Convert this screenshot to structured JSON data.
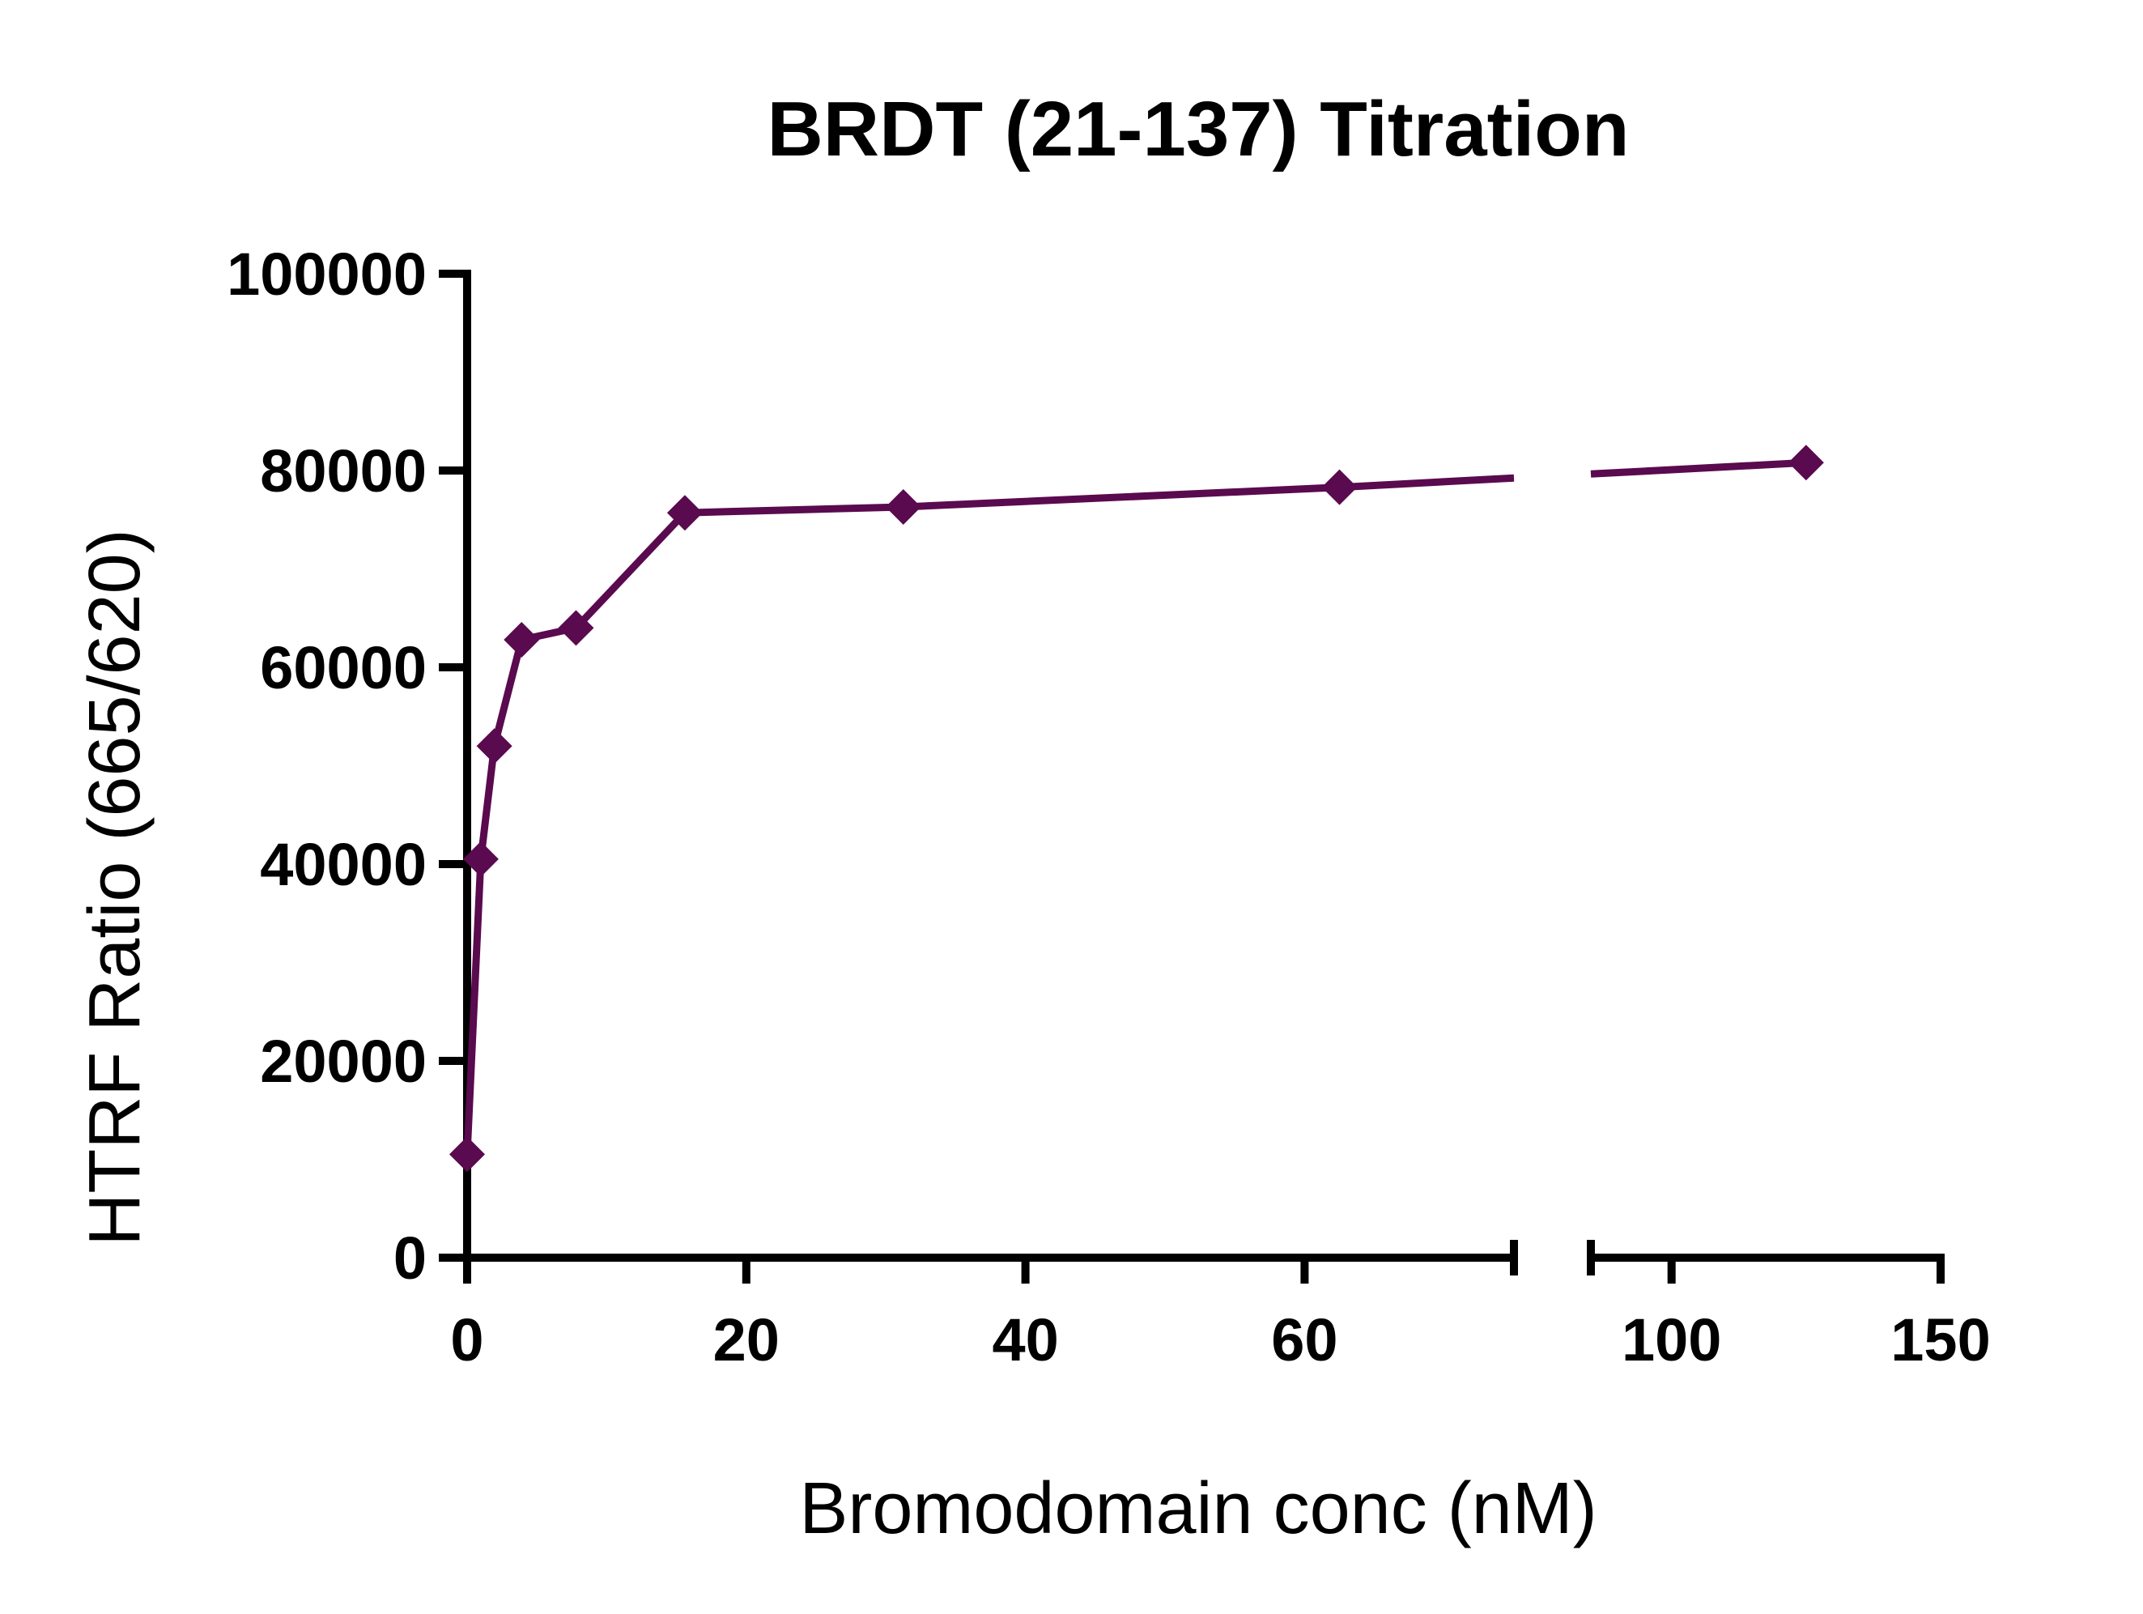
{
  "chart_data": {
    "type": "line",
    "title": "BRDT (21-137) Titration",
    "xlabel": "Bromodomain conc (nM)",
    "ylabel": "HTRF Ratio (665/620)",
    "ylim": [
      0,
      100000
    ],
    "y_ticks": [
      "0",
      "20000",
      "40000",
      "60000",
      "80000",
      "100000"
    ],
    "x_axis": {
      "break": true,
      "segments": [
        {
          "range": [
            0,
            75
          ],
          "ticks": [
            0,
            20,
            40,
            60
          ],
          "tick_labels": [
            "0",
            "20",
            "40",
            "60"
          ]
        },
        {
          "range": [
            85,
            150
          ],
          "ticks": [
            100,
            150
          ],
          "tick_labels": [
            "100",
            "150"
          ]
        }
      ]
    },
    "marker": "diamond",
    "color": "#5a0a4e",
    "grid": false,
    "legend": "none",
    "series": [
      {
        "x": [
          0,
          0.98,
          1.95,
          3.9,
          7.8,
          15.6,
          31.25,
          62.5,
          125
        ],
        "y": [
          10500,
          40500,
          52000,
          62800,
          64000,
          75700,
          76300,
          78300,
          80800
        ]
      }
    ]
  }
}
